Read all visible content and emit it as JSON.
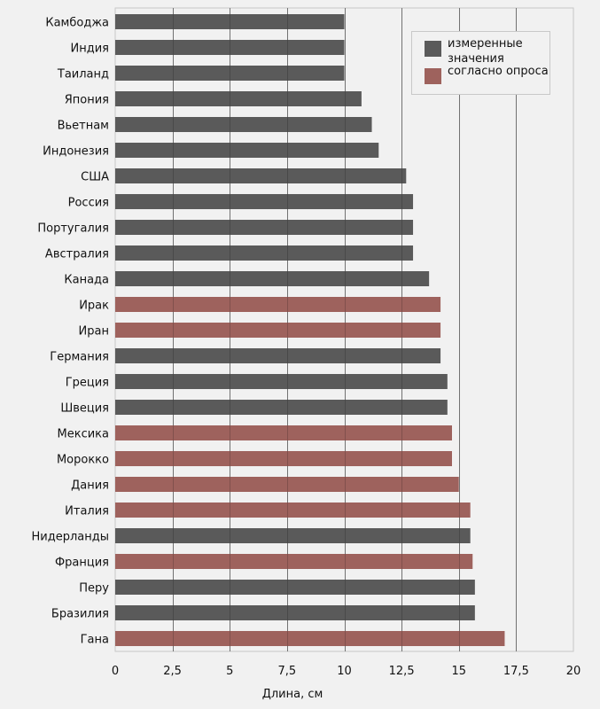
{
  "chart_data": {
    "type": "bar",
    "orientation": "horizontal",
    "title": "",
    "xlabel": "Длина, см",
    "ylabel": "",
    "xlim": [
      0,
      20
    ],
    "xticks": [
      0,
      2.5,
      5,
      7.5,
      10,
      12.5,
      15,
      17.5,
      20
    ],
    "xtick_labels": [
      "0",
      "2,5",
      "5",
      "7,5",
      "10",
      "12,5",
      "15",
      "17,5",
      "20"
    ],
    "grid": "vertical",
    "legend_position": "top-right",
    "series": [
      {
        "key": "measured",
        "name": "измеренные значения",
        "name_lines": [
          "измеренные",
          "значения"
        ],
        "color": "#5a5a5a"
      },
      {
        "key": "survey",
        "name": "согласно опроса",
        "name_lines": [
          "согласно опроса"
        ],
        "color": "#9e625d"
      }
    ],
    "categories": [
      "Камбоджа",
      "Индия",
      "Таиланд",
      "Япония",
      "Вьетнам",
      "Индонезия",
      "США",
      "Россия",
      "Португалия",
      "Австралия",
      "Канада",
      "Ирак",
      "Иран",
      "Германия",
      "Греция",
      "Швеция",
      "Мексика",
      "Морокко",
      "Дания",
      "Италия",
      "Нидерланды",
      "Франция",
      "Перу",
      "Бразилия",
      "Гана"
    ],
    "values": [
      10.0,
      10.0,
      10.0,
      10.75,
      11.2,
      11.5,
      12.7,
      13.0,
      13.0,
      13.0,
      13.7,
      14.2,
      14.2,
      14.2,
      14.5,
      14.5,
      14.7,
      14.7,
      15.0,
      15.5,
      15.5,
      15.6,
      15.7,
      15.7,
      17.0
    ],
    "series_of_bar": [
      "measured",
      "measured",
      "measured",
      "measured",
      "measured",
      "measured",
      "measured",
      "measured",
      "measured",
      "measured",
      "measured",
      "survey",
      "survey",
      "measured",
      "measured",
      "measured",
      "survey",
      "survey",
      "survey",
      "survey",
      "measured",
      "survey",
      "measured",
      "measured",
      "survey"
    ]
  },
  "style": {
    "background": "#f1f1f1",
    "gridline_color": "#8c8c8c",
    "frame_color": "#c8c8c8"
  }
}
